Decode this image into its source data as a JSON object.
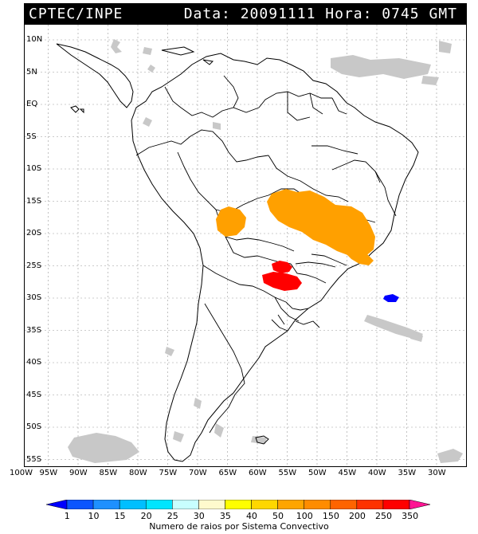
{
  "header": {
    "source": "CPTEC/INPE",
    "date_label": "Data:",
    "date_value": "20091111",
    "time_label": "Hora:",
    "time_value": "0745 GMT"
  },
  "map": {
    "lat_labels": [
      "10N",
      "5N",
      "EQ",
      "5S",
      "10S",
      "15S",
      "20S",
      "25S",
      "30S",
      "35S",
      "40S",
      "45S",
      "50S",
      "55S"
    ],
    "lon_labels": [
      "100W",
      "95W",
      "90W",
      "85W",
      "80W",
      "75W",
      "70W",
      "65W",
      "60W",
      "55W",
      "50W",
      "45W",
      "40W",
      "35W",
      "30W"
    ],
    "layers": {
      "coast_color": "#000000",
      "cloud_color": "#c8c8c8",
      "orange_color": "#ffa000",
      "red_color": "#ff0000",
      "blue_color": "#0000ff"
    }
  },
  "legend": {
    "ticks": [
      "1",
      "10",
      "15",
      "20",
      "25",
      "30",
      "35",
      "40",
      "50",
      "100",
      "150",
      "200",
      "250",
      "350"
    ],
    "colors": [
      "#0000ff",
      "#0a55ff",
      "#1e90ff",
      "#00bfff",
      "#00e5ff",
      "#c8ffff",
      "#fffacd",
      "#ffff00",
      "#ffd700",
      "#ffa500",
      "#ff8c00",
      "#ff6400",
      "#ff3200",
      "#ff0000",
      "#ff1493"
    ],
    "title": "Numero de raios por Sistema Convectivo"
  }
}
